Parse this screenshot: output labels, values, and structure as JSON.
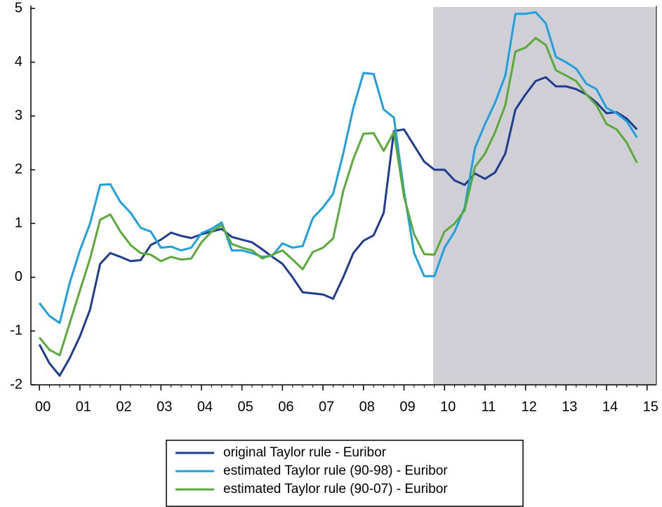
{
  "chart_data": {
    "type": "line",
    "x": [
      2000,
      2000.25,
      2000.5,
      2000.75,
      2001,
      2001.25,
      2001.5,
      2001.75,
      2002,
      2002.25,
      2002.5,
      2002.75,
      2003,
      2003.25,
      2003.5,
      2003.75,
      2004,
      2004.25,
      2004.5,
      2004.75,
      2005,
      2005.25,
      2005.5,
      2005.75,
      2006,
      2006.25,
      2006.5,
      2006.75,
      2007,
      2007.25,
      2007.5,
      2007.75,
      2008,
      2008.25,
      2008.5,
      2008.75,
      2009,
      2009.25,
      2009.5,
      2009.75,
      2010,
      2010.25,
      2010.5,
      2010.75,
      2011,
      2011.25,
      2011.5,
      2011.75,
      2012,
      2012.25,
      2012.5,
      2012.75,
      2013,
      2013.25,
      2013.5,
      2013.75,
      2014,
      2014.25,
      2014.5,
      2014.75
    ],
    "series": [
      {
        "name": "original Taylor rule - Euribor",
        "color": "#1f3c8f",
        "values": [
          -1.25,
          -1.6,
          -1.83,
          -1.5,
          -1.1,
          -0.6,
          0.25,
          0.45,
          0.38,
          0.3,
          0.32,
          0.6,
          0.7,
          0.83,
          0.77,
          0.73,
          0.8,
          0.85,
          0.9,
          0.75,
          0.7,
          0.65,
          0.52,
          0.38,
          0.25,
          0,
          -0.28,
          -0.3,
          -0.32,
          -0.4,
          0,
          0.45,
          0.68,
          0.78,
          1.2,
          2.72,
          2.75,
          2.45,
          2.15,
          2.0,
          2.0,
          1.8,
          1.72,
          1.93,
          1.83,
          1.95,
          2.3,
          3.12,
          3.4,
          3.65,
          3.72,
          3.55,
          3.55,
          3.5,
          3.4,
          3.25,
          3.05,
          3.07,
          2.95,
          2.75
        ]
      },
      {
        "name": "estimated Taylor rule (90-98) - Euribor",
        "color": "#1ea0df",
        "values": [
          -0.48,
          -0.72,
          -0.85,
          -0.1,
          0.5,
          1.0,
          1.72,
          1.73,
          1.4,
          1.2,
          0.92,
          0.85,
          0.55,
          0.57,
          0.5,
          0.55,
          0.82,
          0.9,
          1.02,
          0.5,
          0.5,
          0.45,
          0.38,
          0.4,
          0.63,
          0.55,
          0.58,
          1.1,
          1.3,
          1.55,
          2.3,
          3.15,
          3.8,
          3.78,
          3.12,
          2.97,
          1.6,
          0.45,
          0.02,
          0.02,
          0.55,
          0.85,
          1.3,
          2.4,
          2.85,
          3.25,
          3.75,
          4.9,
          4.9,
          4.93,
          4.72,
          4.1,
          4.0,
          3.88,
          3.6,
          3.5,
          3.15,
          3.05,
          2.9,
          2.6
        ]
      },
      {
        "name": "estimated Taylor rule (90-07) - Euribor",
        "color": "#5aaa3a",
        "values": [
          -1.12,
          -1.35,
          -1.45,
          -0.85,
          -0.25,
          0.35,
          1.07,
          1.17,
          0.85,
          0.6,
          0.45,
          0.42,
          0.3,
          0.38,
          0.33,
          0.35,
          0.65,
          0.85,
          0.97,
          0.62,
          0.55,
          0.5,
          0.35,
          0.42,
          0.5,
          0.33,
          0.15,
          0.47,
          0.55,
          0.72,
          1.6,
          2.2,
          2.67,
          2.68,
          2.35,
          2.7,
          1.5,
          0.8,
          0.43,
          0.42,
          0.85,
          1.0,
          1.25,
          2.05,
          2.3,
          2.7,
          3.2,
          4.2,
          4.27,
          4.45,
          4.32,
          3.85,
          3.75,
          3.65,
          3.4,
          3.2,
          2.85,
          2.75,
          2.5,
          2.13
        ]
      }
    ],
    "xlim": [
      1999.79,
      2015.23
    ],
    "xticks": [
      {
        "value": 2000,
        "label": "00"
      },
      {
        "value": 2001,
        "label": "01"
      },
      {
        "value": 2002,
        "label": "02"
      },
      {
        "value": 2003,
        "label": "03"
      },
      {
        "value": 2004,
        "label": "04"
      },
      {
        "value": 2005,
        "label": "05"
      },
      {
        "value": 2006,
        "label": "06"
      },
      {
        "value": 2007,
        "label": "07"
      },
      {
        "value": 2008,
        "label": "08"
      },
      {
        "value": 2009,
        "label": "09"
      },
      {
        "value": 2010,
        "label": "10"
      },
      {
        "value": 2011,
        "label": "11"
      },
      {
        "value": 2012,
        "label": "12"
      },
      {
        "value": 2013,
        "label": "13"
      },
      {
        "value": 2014,
        "label": "14"
      },
      {
        "value": 2015,
        "label": "15"
      }
    ],
    "ylim": [
      -2,
      5
    ],
    "yticks": [
      -2,
      -1,
      0,
      1,
      2,
      3,
      4,
      5
    ],
    "shade": {
      "xrange": [
        2009.72,
        2015.23
      ],
      "color": "#d1cfd6"
    },
    "grid": false,
    "legend": "bottom"
  }
}
